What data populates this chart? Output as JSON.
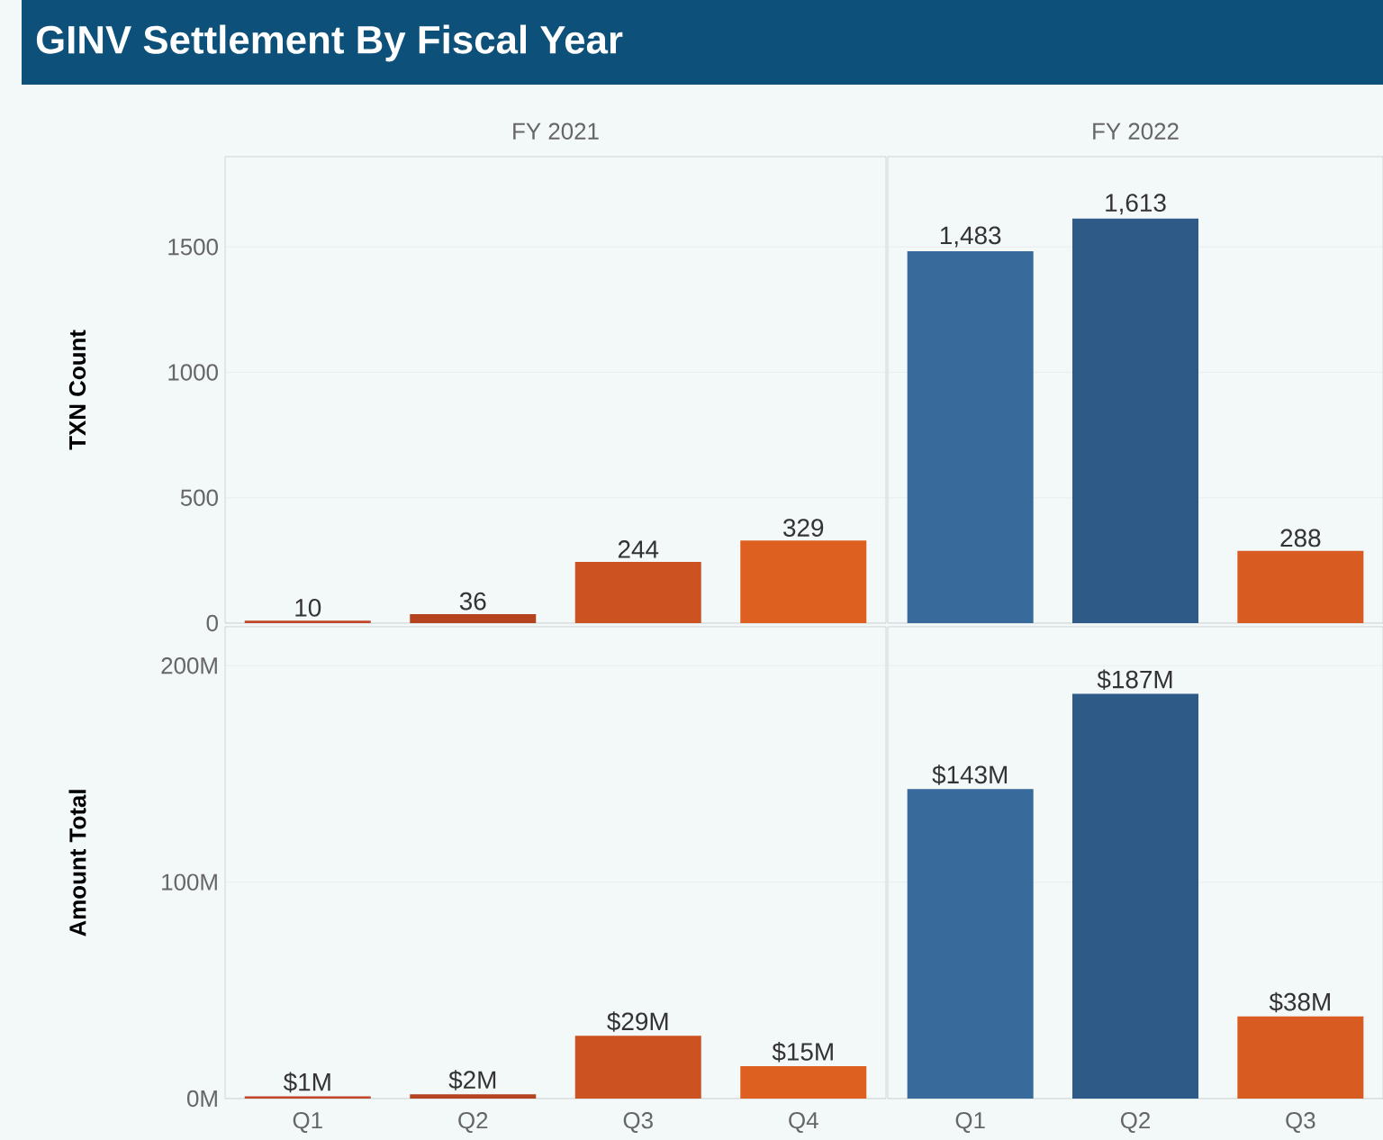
{
  "chart_data": [
    {
      "type": "bar",
      "title": "GINV Settlement By Fiscal Year",
      "subtitle": "FY 2021",
      "ylabel": "TXN Count",
      "categories": [
        null,
        null,
        null,
        null
      ],
      "values": [
        10,
        36,
        244,
        329
      ],
      "value_labels": [
        "10",
        "36",
        "244",
        "329"
      ],
      "colors": [
        "#c0472a",
        "#b5431f",
        "#cc5221",
        "#de6021"
      ],
      "ylim": [
        0,
        1860
      ],
      "yticks": [
        0,
        500,
        1000,
        1500
      ],
      "grid": "y",
      "tick_labels": "y"
    },
    {
      "type": "bar",
      "subtitle": "FY 2022",
      "categories": [
        null,
        null,
        null
      ],
      "values": [
        1483,
        1613,
        288
      ],
      "value_labels": [
        "1,483",
        "1,613",
        "288"
      ],
      "colors": [
        "#386a9c",
        "#2d5a87",
        "#d85c22"
      ],
      "ylim": [
        0,
        1860
      ],
      "yticks": [
        0,
        500,
        1000,
        1500
      ],
      "grid": "y",
      "tick_labels": false
    },
    {
      "type": "bar",
      "ylabel": "Amount Total",
      "categories": [
        "Q1",
        "Q2",
        "Q3",
        "Q4"
      ],
      "values": [
        1,
        2,
        29,
        15
      ],
      "value_labels": [
        "$1M",
        "$2M",
        "$29M",
        "$15M"
      ],
      "colors": [
        "#c0472a",
        "#b5431f",
        "#cc5221",
        "#de6021"
      ],
      "ylim": [
        0,
        218
      ],
      "yticks": [
        {
          "value": 0,
          "label": "0M"
        },
        {
          "value": 100,
          "label": "100M"
        },
        {
          "value": 200,
          "label": "200M"
        }
      ],
      "grid": "y"
    },
    {
      "type": "bar",
      "categories": [
        "Q1",
        "Q2",
        "Q3"
      ],
      "values": [
        143,
        187,
        38
      ],
      "value_labels": [
        "$143M",
        "$187M",
        "$38M"
      ],
      "colors": [
        "#386a9c",
        "#2d5a87",
        "#d85c22"
      ],
      "ylim": [
        0,
        218
      ],
      "yticks": [
        0,
        100,
        200
      ],
      "grid": "y",
      "tick_labels": "x"
    }
  ]
}
